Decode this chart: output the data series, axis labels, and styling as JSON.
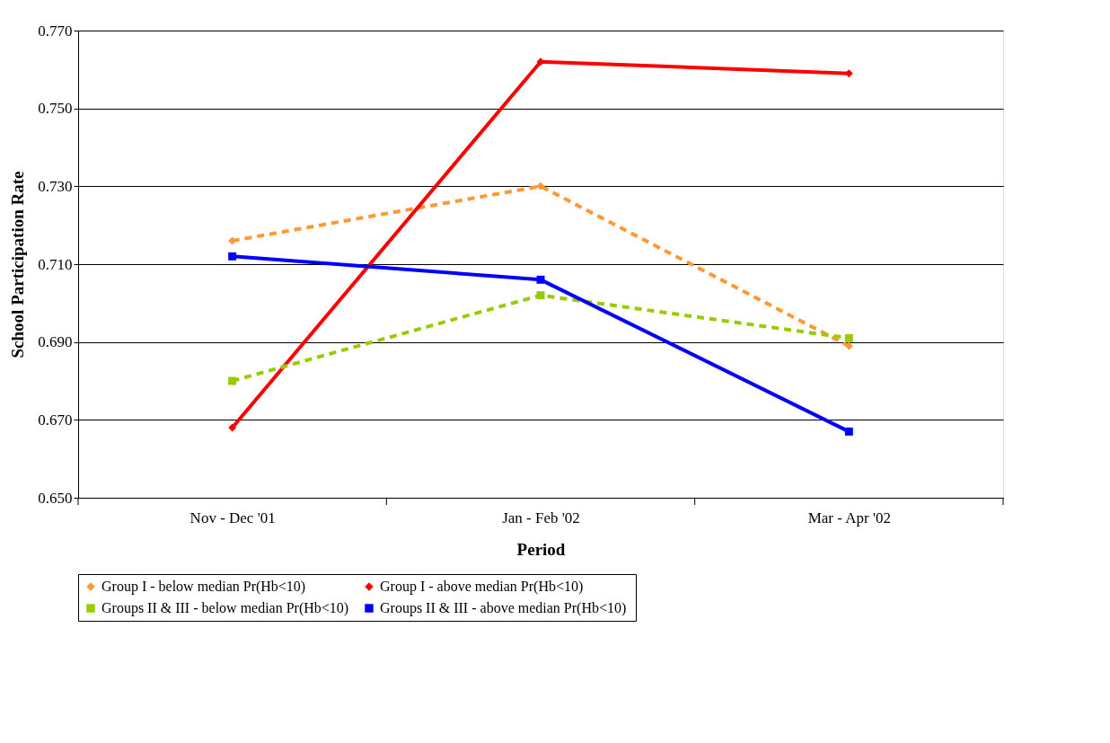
{
  "chart_data": {
    "type": "line",
    "xlabel": "Period",
    "ylabel": "School Participation Rate",
    "categories": [
      "Nov - Dec '01",
      "Jan - Feb '02",
      "Mar - Apr '02"
    ],
    "series": [
      {
        "name": "Group I - below median Pr(Hb<10)",
        "color": "#ff9933",
        "values": [
          0.716,
          0.73,
          0.689
        ],
        "marker": "diamond",
        "line_style": "dashed"
      },
      {
        "name": "Group I - above median Pr(Hb<10)",
        "color": "#ff0000",
        "values": [
          0.668,
          0.762,
          0.759
        ],
        "marker": "diamond",
        "line_style": "solid"
      },
      {
        "name": "Groups II & III -  below median Pr(Hb<10)",
        "color": "#99cc00",
        "values": [
          0.68,
          0.702,
          0.691
        ],
        "marker": "square",
        "line_style": "dashed"
      },
      {
        "name": "Groups II & III -  above median Pr(Hb<10)",
        "color": "#0000ff",
        "values": [
          0.712,
          0.706,
          0.667
        ],
        "marker": "square",
        "line_style": "solid"
      }
    ],
    "ylim": [
      0.65,
      0.77
    ],
    "yticks": [
      {
        "value": 0.65,
        "label": "0.650"
      },
      {
        "value": 0.67,
        "label": "0.670"
      },
      {
        "value": 0.69,
        "label": "0.690"
      },
      {
        "value": 0.71,
        "label": "0.710"
      },
      {
        "value": 0.73,
        "label": "0.730"
      },
      {
        "value": 0.75,
        "label": "0.750"
      },
      {
        "value": 0.77,
        "label": "0.770"
      }
    ],
    "grid": "y",
    "legend": "bottom"
  }
}
